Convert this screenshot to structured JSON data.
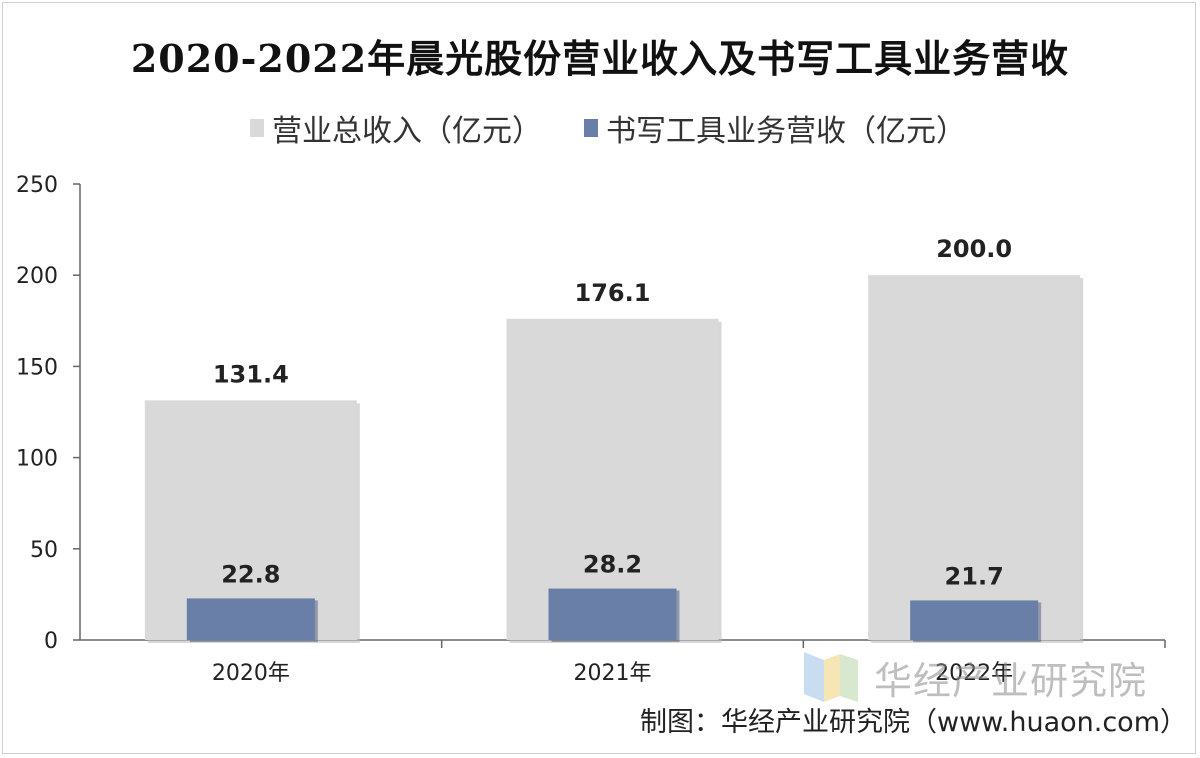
{
  "chart_data": {
    "type": "bar",
    "title": "2020-2022年晨光股份营业收入及书写工具业务营收",
    "categories": [
      "2020年",
      "2021年",
      "2022年"
    ],
    "series": [
      {
        "name": "营业总收入（亿元）",
        "values": [
          131.4,
          176.1,
          200.0
        ],
        "value_labels": [
          "131.4",
          "176.1",
          "200.0"
        ],
        "color": "#d9d9d9"
      },
      {
        "name": "书写工具业务营收（亿元）",
        "values": [
          22.8,
          28.2,
          21.7
        ],
        "value_labels": [
          "22.8",
          "28.2",
          "21.7"
        ],
        "color": "#6a7fa8"
      }
    ],
    "y_ticks": [
      "0",
      "50",
      "100",
      "150",
      "200",
      "250"
    ],
    "ylim": [
      0,
      250
    ],
    "legend_position": "top",
    "grid": false
  },
  "watermark": {
    "text": "华经产业研究院",
    "subtext": "www.huaon.com"
  },
  "credit": "制图：华经产业研究院（www.huaon.com）"
}
